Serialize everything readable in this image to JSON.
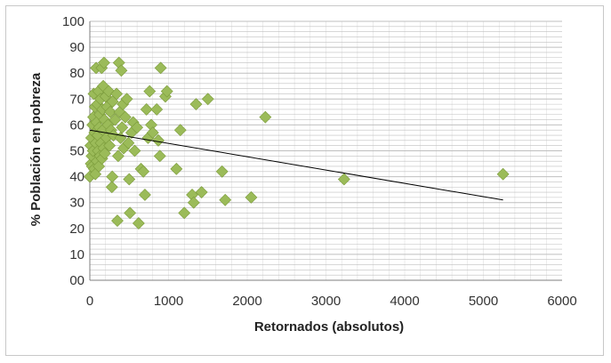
{
  "colors": {
    "marker": "#9bbb59",
    "marker_edge": "#7a9a3a",
    "grid": "#bfbfbf",
    "axis": "#7f7f7f",
    "trendline": "#000000"
  },
  "chart_data": {
    "type": "scatter",
    "title": "",
    "xlabel": "Retornados (absolutos)",
    "ylabel": "% Población en pobreza",
    "xlim": [
      0,
      6000
    ],
    "ylim": [
      0,
      100
    ],
    "x_ticks": [
      "0",
      "1000",
      "2000",
      "3000",
      "4000",
      "5000",
      "6000"
    ],
    "y_ticks": [
      "00",
      "10",
      "20",
      "30",
      "40",
      "50",
      "60",
      "70",
      "80",
      "90",
      "100"
    ],
    "y_tick_values": [
      0,
      10,
      20,
      30,
      40,
      50,
      60,
      70,
      80,
      90,
      100
    ],
    "x_tick_values": [
      0,
      1000,
      2000,
      3000,
      4000,
      5000,
      6000
    ],
    "grid": "horizontal-major-and-minor",
    "legend": "none",
    "marker": "diamond",
    "trendline": {
      "x": [
        0,
        5250
      ],
      "y": [
        58,
        31
      ]
    },
    "series": [
      {
        "points": [
          [
            0,
            40
          ],
          [
            10,
            52
          ],
          [
            15,
            45
          ],
          [
            20,
            55
          ],
          [
            25,
            48
          ],
          [
            30,
            44
          ],
          [
            35,
            60
          ],
          [
            40,
            50
          ],
          [
            45,
            63
          ],
          [
            50,
            72
          ],
          [
            55,
            43
          ],
          [
            60,
            57
          ],
          [
            65,
            67
          ],
          [
            70,
            41
          ],
          [
            75,
            53
          ],
          [
            80,
            82
          ],
          [
            85,
            61
          ],
          [
            90,
            46
          ],
          [
            95,
            68
          ],
          [
            100,
            56
          ],
          [
            105,
            50
          ],
          [
            110,
            73
          ],
          [
            115,
            44
          ],
          [
            120,
            59
          ],
          [
            125,
            64
          ],
          [
            130,
            48
          ],
          [
            135,
            70
          ],
          [
            140,
            53
          ],
          [
            150,
            82
          ],
          [
            155,
            47
          ],
          [
            160,
            66
          ],
          [
            165,
            58
          ],
          [
            170,
            75
          ],
          [
            175,
            51
          ],
          [
            180,
            84
          ],
          [
            185,
            62
          ],
          [
            190,
            49
          ],
          [
            200,
            71
          ],
          [
            210,
            55
          ],
          [
            220,
            67
          ],
          [
            230,
            60
          ],
          [
            240,
            73
          ],
          [
            250,
            52
          ],
          [
            260,
            65
          ],
          [
            270,
            58
          ],
          [
            280,
            36
          ],
          [
            285,
            40
          ],
          [
            290,
            69
          ],
          [
            300,
            56
          ],
          [
            320,
            62
          ],
          [
            340,
            72
          ],
          [
            350,
            23
          ],
          [
            360,
            48
          ],
          [
            370,
            84
          ],
          [
            380,
            65
          ],
          [
            390,
            55
          ],
          [
            400,
            81
          ],
          [
            410,
            59
          ],
          [
            420,
            68
          ],
          [
            430,
            51
          ],
          [
            450,
            63
          ],
          [
            470,
            70
          ],
          [
            490,
            53
          ],
          [
            500,
            39
          ],
          [
            510,
            26
          ],
          [
            530,
            57
          ],
          [
            550,
            61
          ],
          [
            570,
            50
          ],
          [
            600,
            59
          ],
          [
            620,
            22
          ],
          [
            650,
            43
          ],
          [
            680,
            42
          ],
          [
            700,
            33
          ],
          [
            720,
            66
          ],
          [
            740,
            55
          ],
          [
            760,
            73
          ],
          [
            780,
            60
          ],
          [
            800,
            57
          ],
          [
            850,
            66
          ],
          [
            870,
            54
          ],
          [
            890,
            48
          ],
          [
            900,
            82
          ],
          [
            960,
            71
          ],
          [
            980,
            73
          ],
          [
            1100,
            43
          ],
          [
            1150,
            58
          ],
          [
            1200,
            26
          ],
          [
            1300,
            33
          ],
          [
            1320,
            30
          ],
          [
            1350,
            68
          ],
          [
            1420,
            34
          ],
          [
            1500,
            70
          ],
          [
            1680,
            42
          ],
          [
            1720,
            31
          ],
          [
            2050,
            32
          ],
          [
            2230,
            63
          ],
          [
            3230,
            39
          ],
          [
            5250,
            41
          ]
        ]
      }
    ]
  }
}
